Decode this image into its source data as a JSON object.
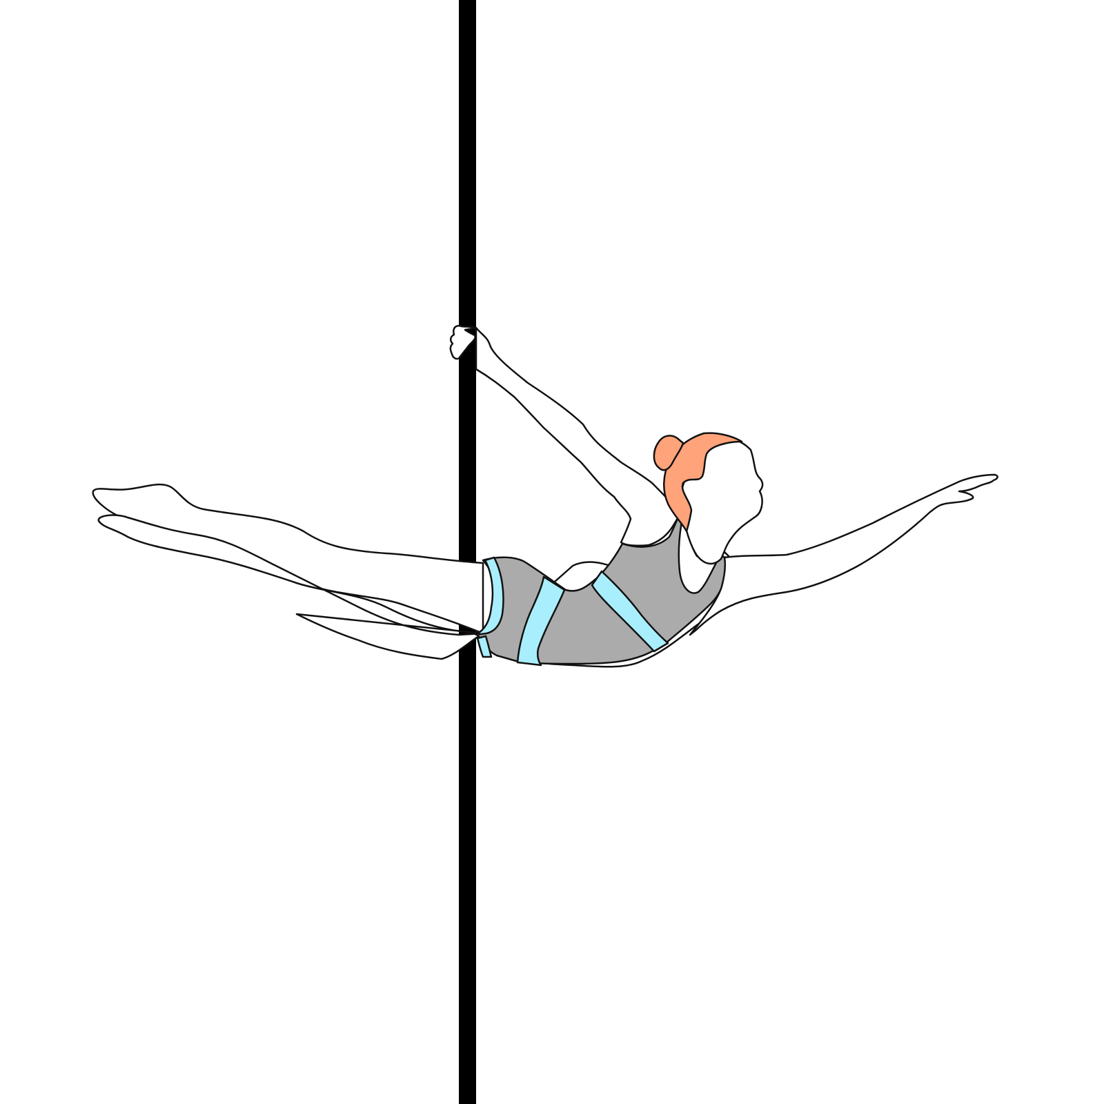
{
  "illustration": {
    "subject": "pole-dance-pose",
    "colors": {
      "background": "#ffffff",
      "pole": "#000000",
      "outline": "#111111",
      "skin": "#ffffff",
      "hair": "#FFA37A",
      "outfit_main": "#ABABAB",
      "outfit_stripe": "#A9EEFC"
    }
  }
}
